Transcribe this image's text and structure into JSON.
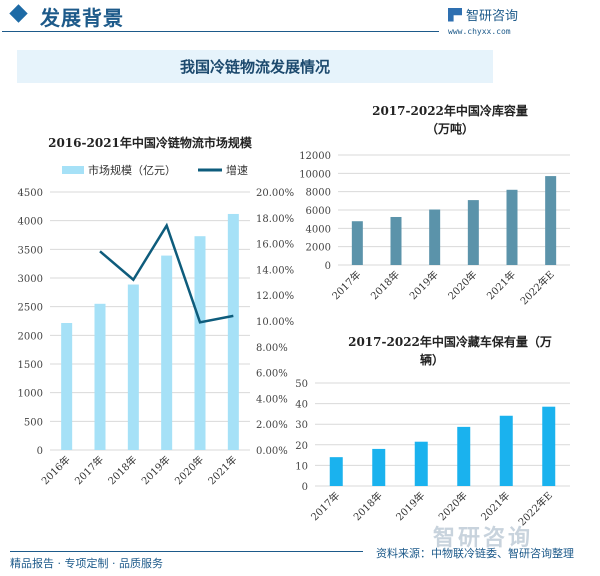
{
  "header": {
    "title": "发展背景",
    "logo_text": "智研咨询",
    "url": "www.chyxx.com"
  },
  "banner": {
    "title": "我国冷链物流发展情况"
  },
  "footer": {
    "left": "精品报告 · 专项定制 · 品质服务",
    "source": "资料来源：中物联冷链委、智研咨询整理",
    "watermark": "智研咨询"
  },
  "colors": {
    "bar1": "#a6e1f7",
    "line1": "#0e5c7c",
    "bar2": "#5b93aa",
    "bar3": "#1ab2ee",
    "grid": "#d9d9d9"
  },
  "chart_data": [
    {
      "type": "bar+line",
      "title": "2016-2021年中国冷链物流市场规模",
      "categories": [
        "2016年",
        "2017年",
        "2018年",
        "2019年",
        "2020年",
        "2021年"
      ],
      "series": [
        {
          "name": "市场规模（亿元）",
          "type": "bar",
          "axis": "left",
          "values": [
            2215,
            2550,
            2886,
            3391,
            3729,
            4117
          ]
        },
        {
          "name": "增速",
          "type": "line",
          "axis": "right",
          "values": [
            null,
            15.4,
            13.2,
            17.4,
            9.9,
            10.4
          ]
        }
      ],
      "ylim": [
        0,
        4500
      ],
      "yticks": [
        "0",
        "500",
        "1000",
        "1500",
        "2000",
        "2500",
        "3000",
        "3500",
        "4000",
        "4500"
      ],
      "y2lim": [
        0,
        20
      ],
      "y2ticks": [
        "0.00%",
        "2.00%",
        "4.00%",
        "6.00%",
        "8.00%",
        "10.00%",
        "12.00%",
        "14.00%",
        "16.00%",
        "18.00%",
        "20.00%"
      ],
      "legend": "top",
      "grid": true
    },
    {
      "type": "bar",
      "title": "2017-2022年中国冷库容量",
      "subtitle": "（万吨）",
      "categories": [
        "2017年",
        "2018年",
        "2019年",
        "2020年",
        "2021年",
        "2022年E"
      ],
      "values": [
        4775,
        5238,
        6053,
        7080,
        8205,
        9700
      ],
      "ylim": [
        0,
        12000
      ],
      "yticks": [
        "0",
        "2000",
        "4000",
        "6000",
        "8000",
        "10000",
        "12000"
      ],
      "grid": true
    },
    {
      "type": "bar",
      "title": "2017-2022年中国冷藏车保有量（万",
      "subtitle": "辆）",
      "categories": [
        "2017年",
        "2018年",
        "2019年",
        "2020年",
        "2021年",
        "2022年E"
      ],
      "values": [
        14,
        18,
        21.5,
        28.7,
        34.1,
        38.5
      ],
      "ylim": [
        0,
        50
      ],
      "yticks": [
        "0",
        "10",
        "20",
        "30",
        "40",
        "50"
      ],
      "grid": true
    }
  ]
}
